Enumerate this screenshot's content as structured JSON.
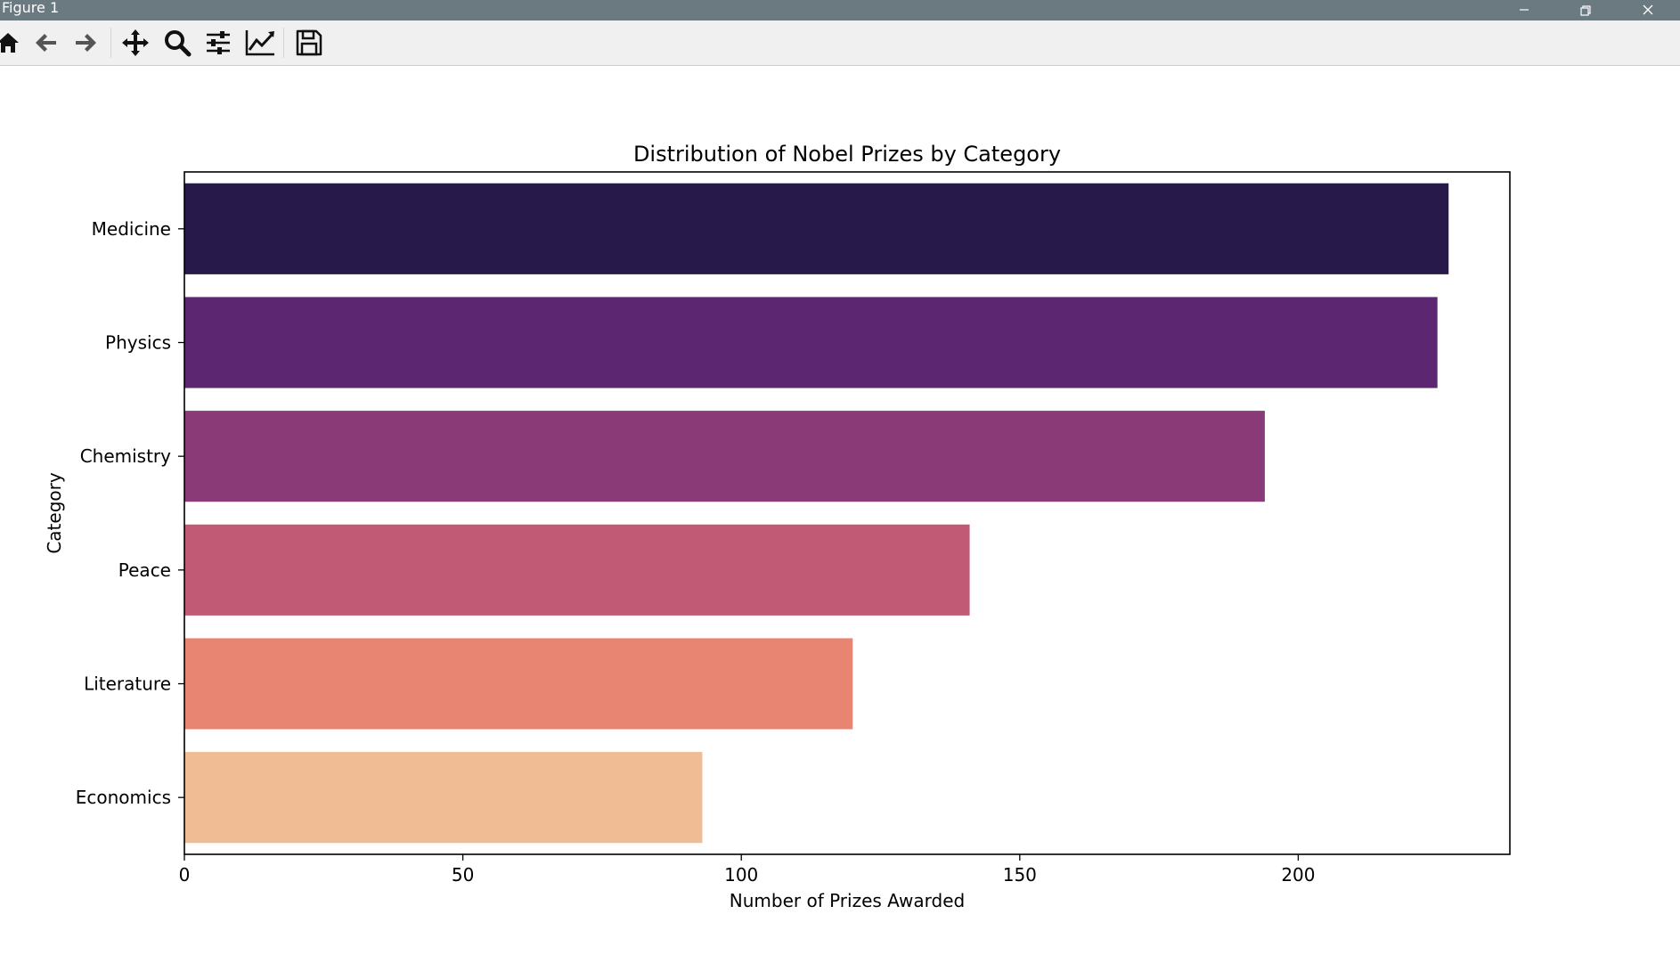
{
  "window": {
    "title": "Figure 1"
  },
  "toolbar": {
    "buttons": [
      {
        "name": "home",
        "icon": "home-icon"
      },
      {
        "name": "back",
        "icon": "arrow-left-icon"
      },
      {
        "name": "forward",
        "icon": "arrow-right-icon"
      },
      {
        "name": "pan",
        "icon": "move-icon"
      },
      {
        "name": "zoom",
        "icon": "magnifier-icon"
      },
      {
        "name": "configure-subplots",
        "icon": "sliders-icon"
      },
      {
        "name": "edit-axes",
        "icon": "line-chart-icon"
      },
      {
        "name": "save",
        "icon": "floppy-disk-icon"
      }
    ]
  },
  "chart_data": {
    "type": "bar",
    "orientation": "horizontal",
    "title": "Distribution of Nobel Prizes by Category",
    "xlabel": "Number of Prizes Awarded",
    "ylabel": "Category",
    "categories": [
      "Medicine",
      "Physics",
      "Chemistry",
      "Peace",
      "Literature",
      "Economics"
    ],
    "values": [
      227,
      225,
      194,
      141,
      120,
      93
    ],
    "colors": [
      "#271a4a",
      "#5c2671",
      "#8a3b77",
      "#c15a74",
      "#e78572",
      "#f0bc93"
    ],
    "xlim": [
      0,
      238
    ],
    "xticks": [
      0,
      50,
      100,
      150,
      200
    ],
    "grid": false,
    "legend": null
  }
}
